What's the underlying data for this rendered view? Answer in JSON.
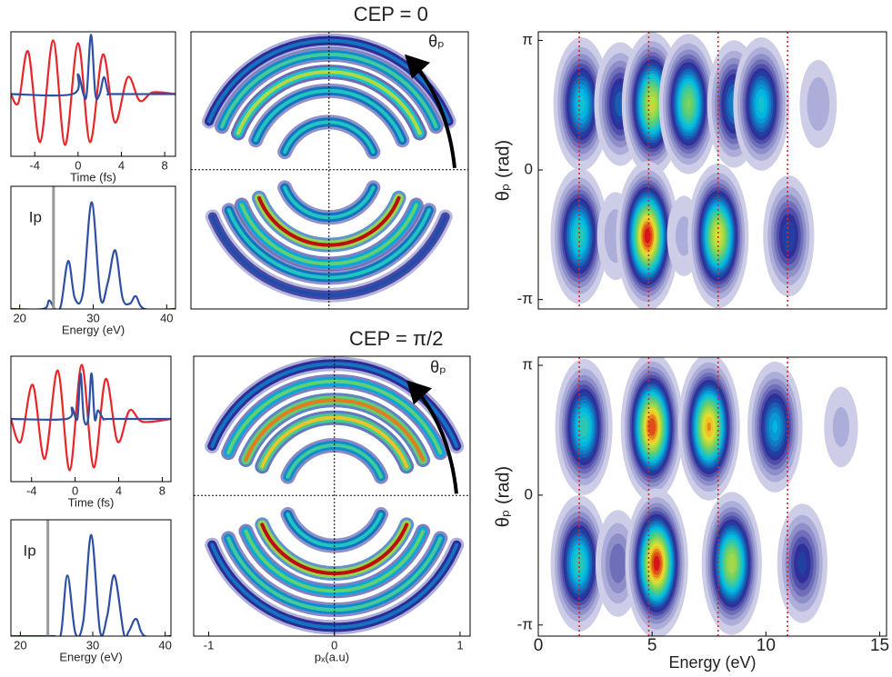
{
  "chart_data": [
    {
      "type": "line",
      "xlim": [
        -6.2,
        9.0
      ],
      "ylim": [
        -1.1,
        1.1
      ],
      "xticks": [
        -4,
        0,
        4,
        8
      ],
      "xlabel": "Time (fs)",
      "series": [
        {
          "color": "#e8262a",
          "x": [
            -6.2,
            -5.5,
            -4.6,
            -3.5,
            -2.3,
            -1.2,
            0,
            1.1,
            2.3,
            3.4,
            4.6,
            5.7,
            6.9,
            9.0
          ],
          "values": [
            0,
            -0.15,
            0.75,
            -0.85,
            0.95,
            -0.9,
            0.9,
            -0.85,
            0.7,
            -0.5,
            0.3,
            -0.12,
            0.03,
            0
          ]
        },
        {
          "color": "#2e4fa3",
          "x": [
            -6.2,
            -0.5,
            0,
            0.5,
            0.8,
            1.2,
            1.6,
            2.0,
            2.4,
            2.8,
            3.3,
            9.0
          ],
          "values": [
            0,
            0,
            0.35,
            0,
            0,
            1.05,
            0,
            0,
            0.3,
            0.02,
            0,
            0
          ]
        }
      ]
    },
    {
      "type": "line",
      "xlim": [
        18.8,
        41.2
      ],
      "ylim": [
        0,
        1.15
      ],
      "xticks": [
        20,
        30,
        40
      ],
      "xlabel": "Energy (eV)",
      "annotation": {
        "text": "Ip",
        "x": 24.6,
        "color": "#999999"
      },
      "series": [
        {
          "color": "#2e4fa3",
          "x": [
            18.8,
            23.2,
            24,
            24.8,
            25.6,
            26.6,
            27.5,
            28.6,
            29.8,
            31,
            32,
            33,
            34,
            35,
            35.8,
            37,
            41.2
          ],
          "values": [
            0,
            0,
            0.08,
            0,
            0.03,
            0.45,
            0.1,
            0.15,
            1.0,
            0.1,
            0.25,
            0.55,
            0.1,
            0.05,
            0.12,
            0,
            0
          ]
        }
      ]
    },
    {
      "type": "rings",
      "title": "CEP = 0",
      "annotation": "θₚ",
      "xlim": [
        -1.1,
        1.11
      ],
      "ylim": [
        -1.11,
        1.1
      ],
      "rings": [
        {
          "half": "upper",
          "radius": 1.03,
          "value": 0.35
        },
        {
          "half": "upper",
          "radius": 0.92,
          "value": 0.55
        },
        {
          "half": "upper",
          "radius": 0.78,
          "value": 0.7
        },
        {
          "half": "upper",
          "radius": 0.63,
          "value": 0.5
        },
        {
          "half": "upper",
          "radius": 0.38,
          "value": 0.5
        },
        {
          "half": "lower",
          "radius": 1.0,
          "value": 0.3
        },
        {
          "half": "lower",
          "radius": 0.86,
          "value": 0.5
        },
        {
          "half": "lower",
          "radius": 0.75,
          "value": 0.6
        },
        {
          "half": "lower",
          "radius": 0.6,
          "value": 0.95
        },
        {
          "half": "lower",
          "radius": 0.38,
          "value": 0.5
        }
      ]
    },
    {
      "type": "contour",
      "xlim": [
        0,
        15.3
      ],
      "ylim": [
        -3.37,
        3.35
      ],
      "ylabel": "θₚ (rad)",
      "yticks": [
        {
          "value": 3.1416,
          "label": "π"
        },
        0,
        {
          "value": -3.1416,
          "label": "-π"
        }
      ],
      "markers": [
        1.8,
        4.85,
        7.9,
        10.95
      ],
      "blobs": [
        {
          "x": 1.9,
          "y": 1.6,
          "value": 0.5
        },
        {
          "x": 3.6,
          "y": 1.6,
          "value": 0.35
        },
        {
          "x": 5.0,
          "y": 1.6,
          "value": 0.75
        },
        {
          "x": 6.6,
          "y": 1.6,
          "value": 0.65
        },
        {
          "x": 8.6,
          "y": 1.6,
          "value": 0.4
        },
        {
          "x": 9.8,
          "y": 1.6,
          "value": 0.5
        },
        {
          "x": 12.3,
          "y": 1.6,
          "value": 0.12
        },
        {
          "x": 1.8,
          "y": -1.6,
          "value": 0.55
        },
        {
          "x": 3.4,
          "y": -1.6,
          "value": 0.12
        },
        {
          "x": 4.8,
          "y": -1.6,
          "value": 0.95
        },
        {
          "x": 6.4,
          "y": -1.6,
          "value": 0.1
        },
        {
          "x": 7.9,
          "y": -1.6,
          "value": 0.78
        },
        {
          "x": 11.0,
          "y": -1.6,
          "value": 0.32
        }
      ]
    },
    {
      "type": "line",
      "xlim": [
        -5.9,
        8.8
      ],
      "ylim": [
        -1.1,
        1.1
      ],
      "xticks": [
        -4,
        0,
        4,
        8
      ],
      "xlabel": "Time (fs)",
      "series": [
        {
          "color": "#e8262a",
          "x": [
            -5.9,
            -5,
            -3.9,
            -2.8,
            -1.6,
            -0.5,
            0.6,
            1.7,
            2.8,
            3.9,
            5,
            6.2,
            8.8
          ],
          "values": [
            0,
            -0.4,
            0.6,
            -0.7,
            0.85,
            -0.9,
            0.95,
            -0.85,
            0.7,
            -0.4,
            0.15,
            -0.05,
            0
          ]
        },
        {
          "color": "#2e4fa3",
          "x": [
            -5.9,
            -0.8,
            -0.3,
            0.2,
            0.5,
            0.8,
            1.2,
            1.5,
            1.8,
            2.1,
            2.6,
            3.2,
            8.8
          ],
          "values": [
            0,
            0,
            0.2,
            0,
            0.8,
            0,
            0,
            0.8,
            0,
            0.15,
            0,
            0,
            0
          ]
        }
      ]
    },
    {
      "type": "line",
      "xlim": [
        18.7,
        40.8
      ],
      "ylim": [
        0,
        1.15
      ],
      "xticks": [
        20,
        30,
        40
      ],
      "xlabel": "Energy (eV)",
      "annotation": {
        "text": "Ip",
        "x": 23.8,
        "color": "#999999"
      },
      "series": [
        {
          "color": "#2e4fa3",
          "x": [
            18.7,
            24.5,
            25.6,
            26.5,
            27.6,
            28.7,
            29.8,
            31,
            32,
            33,
            34.3,
            35,
            36,
            37.2,
            40.8
          ],
          "values": [
            0,
            0,
            0.02,
            0.6,
            0.03,
            0.15,
            1.0,
            0.05,
            0.2,
            0.6,
            0.02,
            0.05,
            0.17,
            0,
            0
          ]
        }
      ]
    },
    {
      "type": "rings",
      "title": "CEP = π/2",
      "annotation": "θₚ",
      "xlim": [
        -1.12,
        1.08
      ],
      "ylim": [
        -1.12,
        1.11
      ],
      "xticks": [
        -1,
        0,
        1
      ],
      "xlabel": "pₓ(a.u)",
      "rings": [
        {
          "half": "upper",
          "radius": 1.05,
          "value": 0.35
        },
        {
          "half": "upper",
          "radius": 0.91,
          "value": 0.6
        },
        {
          "half": "upper",
          "radius": 0.76,
          "value": 0.85
        },
        {
          "half": "upper",
          "radius": 0.62,
          "value": 0.8
        },
        {
          "half": "upper",
          "radius": 0.4,
          "value": 0.55
        },
        {
          "half": "lower",
          "radius": 1.05,
          "value": 0.35
        },
        {
          "half": "lower",
          "radius": 0.91,
          "value": 0.55
        },
        {
          "half": "lower",
          "radius": 0.76,
          "value": 0.6
        },
        {
          "half": "lower",
          "radius": 0.62,
          "value": 0.95
        },
        {
          "half": "lower",
          "radius": 0.4,
          "value": 0.5
        }
      ]
    },
    {
      "type": "contour",
      "xlim": [
        0,
        15.3
      ],
      "ylim": [
        -3.41,
        3.34
      ],
      "xticks": [
        0,
        5,
        10,
        15
      ],
      "xlabel": "Energy (eV)",
      "ylabel": "θₚ (rad)",
      "yticks": [
        {
          "value": 3.1416,
          "label": "π"
        },
        0,
        {
          "value": -3.1416,
          "label": "-π"
        }
      ],
      "markers": [
        1.8,
        4.85,
        7.9,
        10.95
      ],
      "blobs": [
        {
          "x": 2.0,
          "y": 1.65,
          "value": 0.55
        },
        {
          "x": 5.0,
          "y": 1.65,
          "value": 0.92
        },
        {
          "x": 7.5,
          "y": 1.65,
          "value": 0.85
        },
        {
          "x": 10.4,
          "y": 1.65,
          "value": 0.45
        },
        {
          "x": 13.3,
          "y": 1.65,
          "value": 0.1
        },
        {
          "x": 1.8,
          "y": -1.65,
          "value": 0.55
        },
        {
          "x": 3.5,
          "y": -1.65,
          "value": 0.2
        },
        {
          "x": 5.2,
          "y": -1.65,
          "value": 0.95
        },
        {
          "x": 8.5,
          "y": -1.65,
          "value": 0.72
        },
        {
          "x": 11.6,
          "y": -1.65,
          "value": 0.3
        }
      ]
    }
  ]
}
